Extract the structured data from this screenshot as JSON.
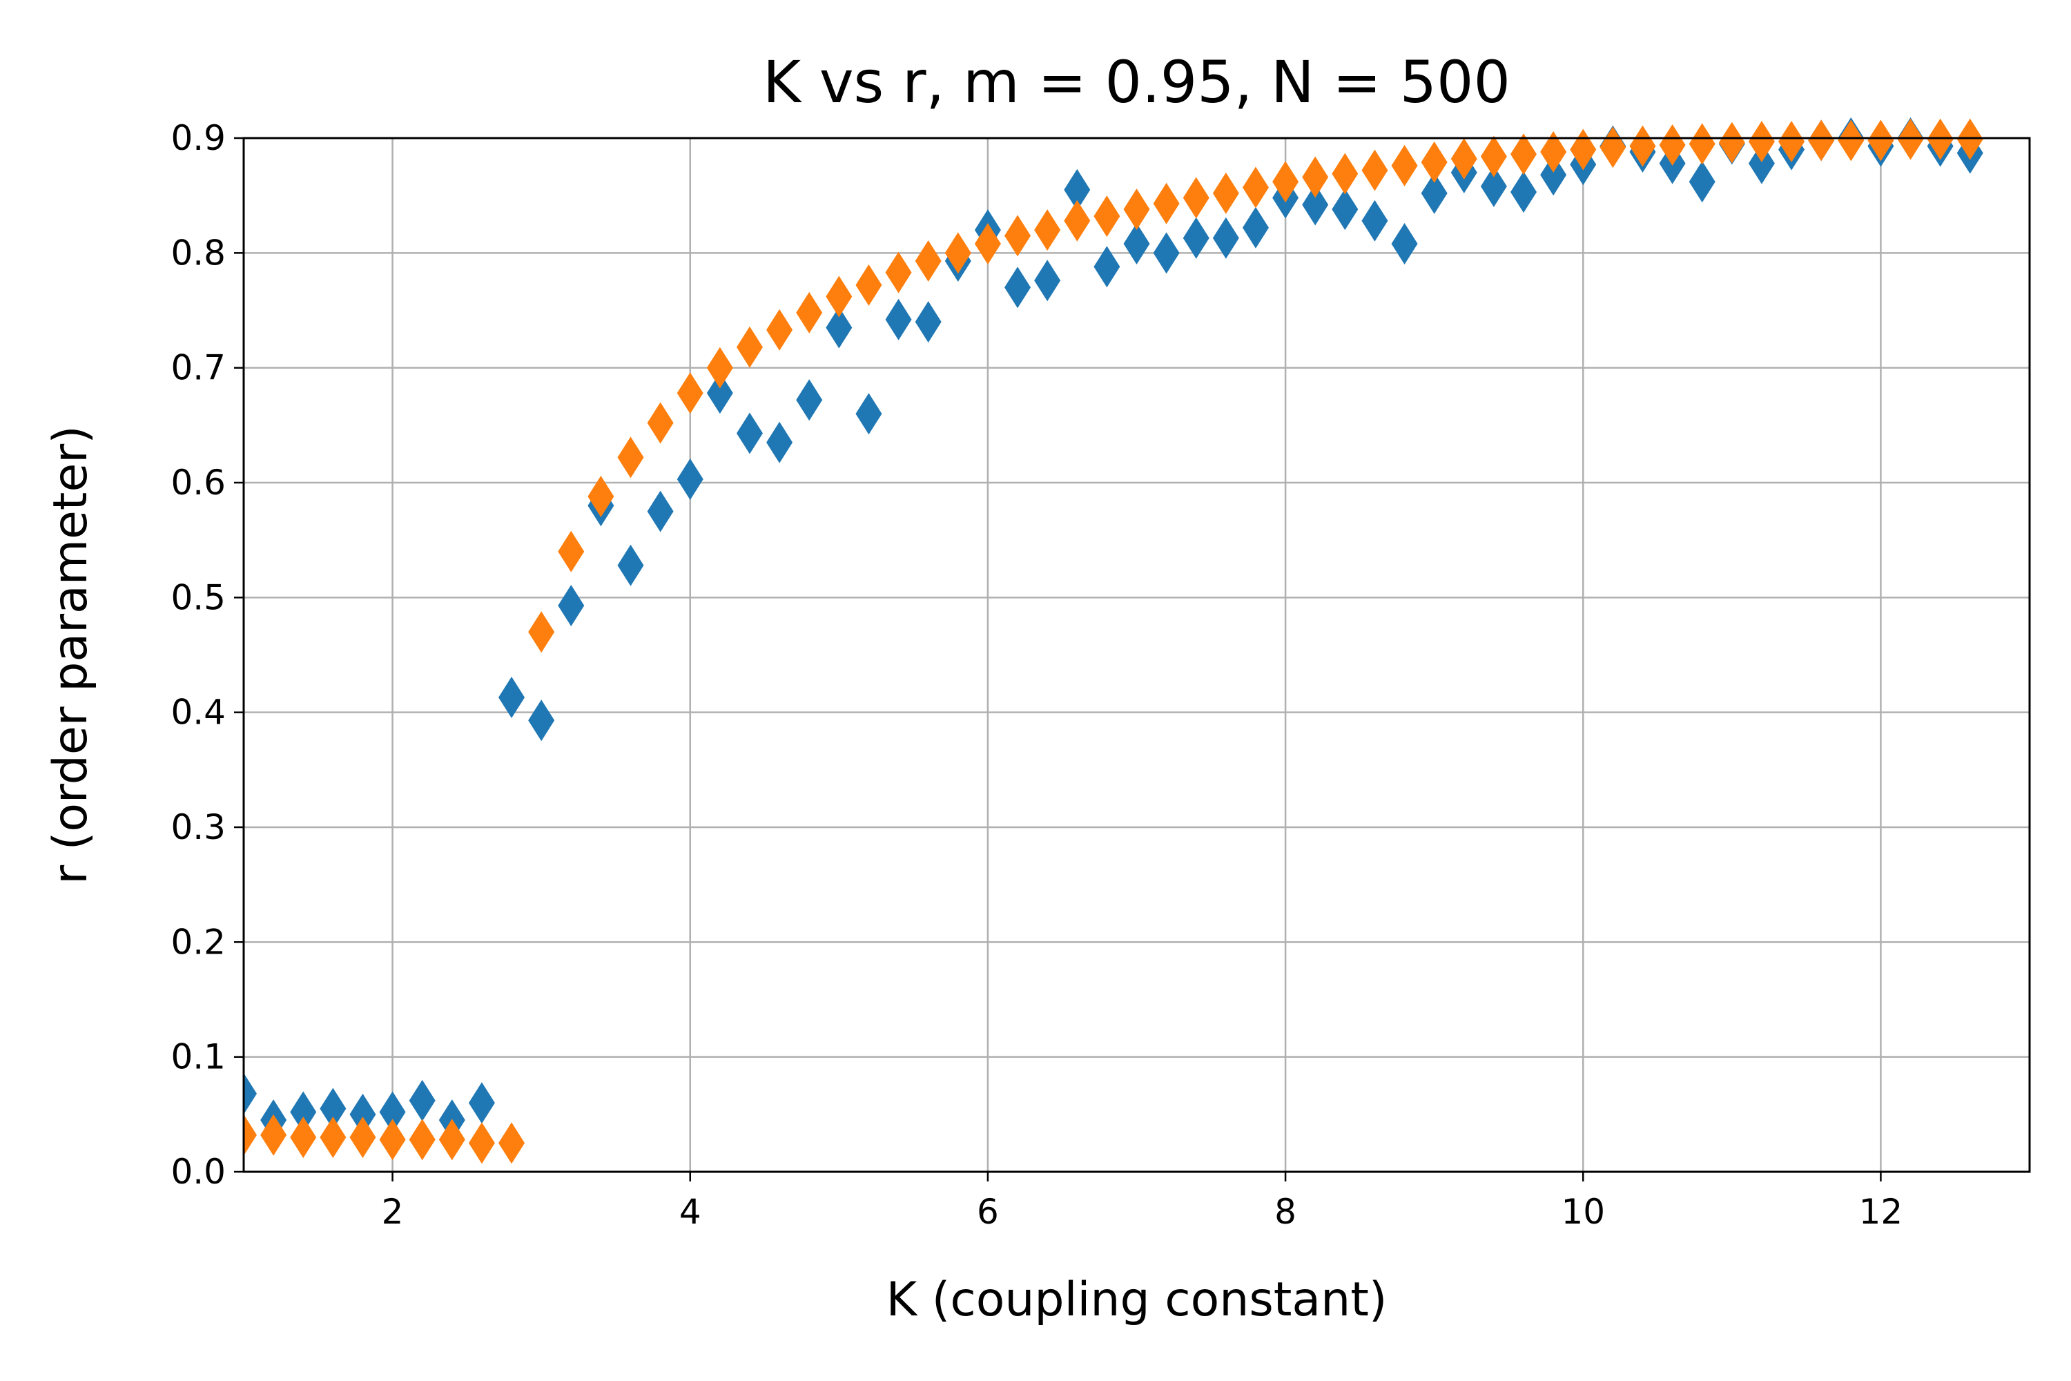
{
  "chart_data": {
    "type": "scatter",
    "title": "K vs r, m = 0.95, N = 500",
    "xlabel": "K (coupling constant)",
    "ylabel": "r (order parameter)",
    "xlim": [
      1,
      13
    ],
    "ylim": [
      0,
      0.9
    ],
    "xticks": [
      2,
      4,
      6,
      8,
      10,
      12
    ],
    "yticks": [
      0.0,
      0.1,
      0.2,
      0.3,
      0.4,
      0.5,
      0.6,
      0.7,
      0.8,
      0.9
    ],
    "xtick_labels": [
      "2",
      "4",
      "6",
      "8",
      "10",
      "12"
    ],
    "ytick_labels": [
      "0.0",
      "0.1",
      "0.2",
      "0.3",
      "0.4",
      "0.5",
      "0.6",
      "0.7",
      "0.8",
      "0.9"
    ],
    "grid": true,
    "marker": "diamond",
    "x": [
      1.0,
      1.2,
      1.4,
      1.6,
      1.8,
      2.0,
      2.2,
      2.4,
      2.6,
      2.8,
      3.0,
      3.2,
      3.4,
      3.6,
      3.8,
      4.0,
      4.2,
      4.4,
      4.6,
      4.8,
      5.0,
      5.2,
      5.4,
      5.6,
      5.8,
      6.0,
      6.2,
      6.4,
      6.6,
      6.8,
      7.0,
      7.2,
      7.4,
      7.6,
      7.8,
      8.0,
      8.2,
      8.4,
      8.6,
      8.8,
      9.0,
      9.2,
      9.4,
      9.6,
      9.8,
      10.0,
      10.2,
      10.4,
      10.6,
      10.8,
      11.0,
      11.2,
      11.4,
      11.6,
      11.8,
      12.0,
      12.2,
      12.4,
      12.6
    ],
    "series": [
      {
        "color": "#1f77b4",
        "values": [
          0.068,
          0.045,
          0.052,
          0.055,
          0.05,
          0.052,
          0.062,
          0.045,
          0.06,
          0.413,
          0.393,
          0.493,
          0.58,
          0.528,
          0.575,
          0.603,
          0.678,
          0.643,
          0.635,
          0.672,
          0.735,
          0.66,
          0.742,
          0.74,
          0.793,
          0.82,
          0.77,
          0.776,
          0.855,
          0.788,
          0.808,
          0.8,
          0.813,
          0.813,
          0.822,
          0.848,
          0.842,
          0.838,
          0.828,
          0.808,
          0.852,
          0.87,
          0.858,
          0.853,
          0.868,
          0.877,
          0.893,
          0.888,
          0.878,
          0.862,
          0.895,
          0.878,
          0.89,
          0.898,
          0.9,
          0.893,
          0.9,
          0.893,
          0.887
        ]
      },
      {
        "color": "#ff7f0e",
        "values": [
          0.032,
          0.032,
          0.03,
          0.03,
          0.03,
          0.028,
          0.028,
          0.028,
          0.025,
          0.025,
          0.47,
          0.54,
          0.588,
          0.622,
          0.652,
          0.678,
          0.7,
          0.718,
          0.733,
          0.748,
          0.762,
          0.772,
          0.783,
          0.793,
          0.8,
          0.808,
          0.815,
          0.82,
          0.828,
          0.832,
          0.838,
          0.843,
          0.848,
          0.852,
          0.857,
          0.862,
          0.866,
          0.869,
          0.872,
          0.876,
          0.879,
          0.882,
          0.884,
          0.886,
          0.888,
          0.89,
          0.892,
          0.893,
          0.894,
          0.895,
          0.896,
          0.897,
          0.897,
          0.898,
          0.898,
          0.898,
          0.899,
          0.899,
          0.899
        ]
      }
    ]
  }
}
